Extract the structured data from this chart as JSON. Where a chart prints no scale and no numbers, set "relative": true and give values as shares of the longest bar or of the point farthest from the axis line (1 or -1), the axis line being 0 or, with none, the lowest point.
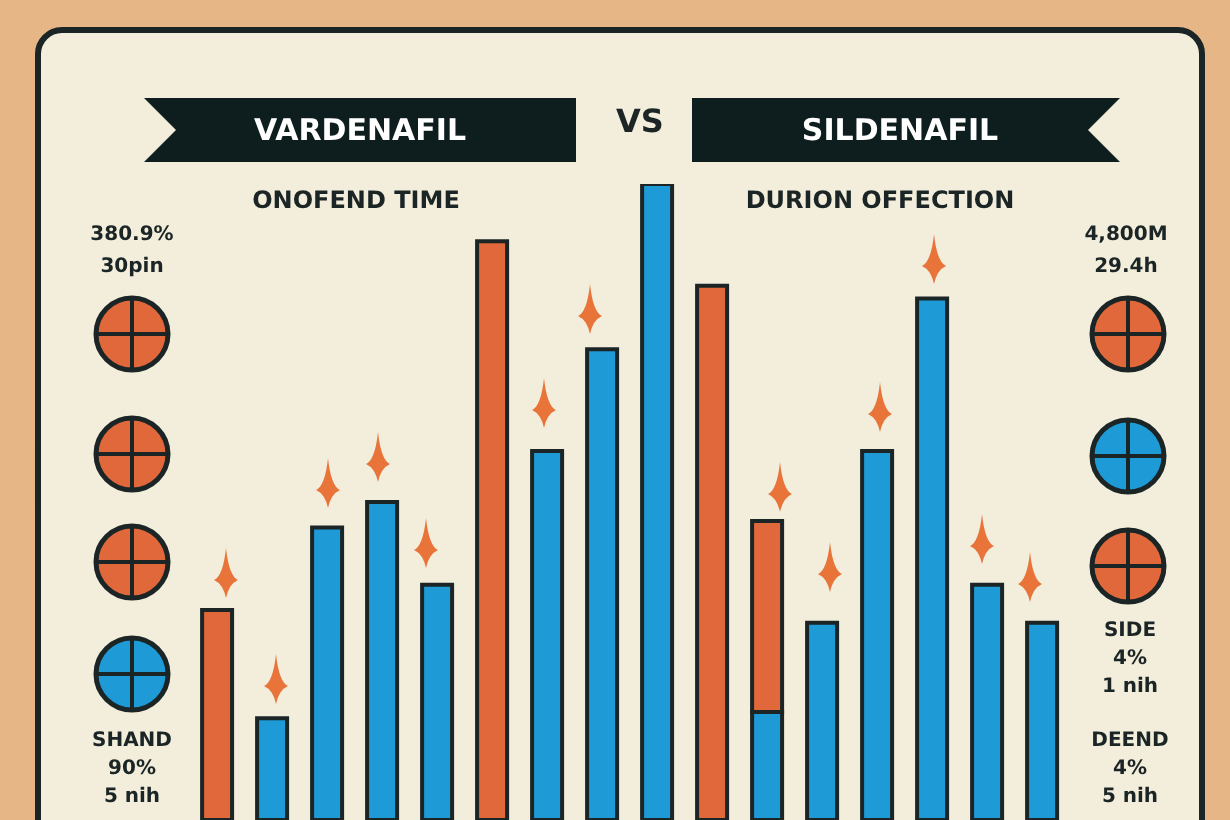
{
  "chart_data": {
    "type": "bar",
    "relative": true,
    "stacked": true,
    "categories": [
      null,
      null,
      null,
      null,
      null,
      null,
      null,
      null,
      null,
      null,
      null,
      null,
      null,
      null,
      null,
      null
    ],
    "series": [
      {
        "color": "#1e9ad6",
        "values": [
          null,
          0.16,
          0.46,
          0.5,
          0.37,
          null,
          0.58,
          0.74,
          1,
          null,
          0.17,
          0.31,
          0.58,
          0.82,
          0.37,
          0.31
        ]
      },
      {
        "color": "#e0683a",
        "values": [
          0.33,
          null,
          null,
          null,
          null,
          0.91,
          null,
          null,
          null,
          0.84,
          0.3,
          null,
          null,
          null,
          null,
          null
        ]
      }
    ],
    "annotations": [
      "VARDENAFIL",
      "VS",
      "SILDENAFIL",
      "ONOFEND TIME",
      "DURION OFFECTION",
      "380.9%",
      "30pin",
      "4,800M",
      "29.4h",
      "SHAND",
      "90%",
      "5 nih",
      "SIDE",
      "4%",
      "1 nih",
      "DEEND",
      "4%",
      "5 nih"
    ]
  }
}
